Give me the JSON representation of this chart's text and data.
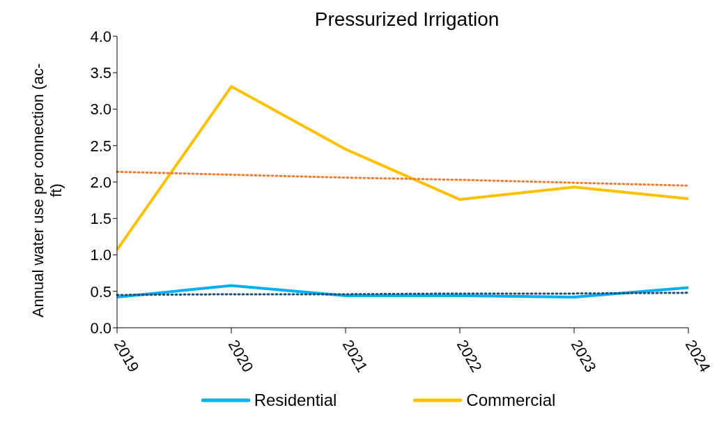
{
  "chart_data": {
    "type": "line",
    "title": "Pressurized Irrigation",
    "ylabel": "Annual water use per connection (ac-ft)",
    "categories": [
      "2019",
      "2020",
      "2021",
      "2022",
      "2023",
      "2024"
    ],
    "series": [
      {
        "name": "Residential",
        "color": "#00b0f0",
        "values": [
          0.42,
          0.58,
          0.44,
          0.44,
          0.42,
          0.55
        ]
      },
      {
        "name": "Commercial",
        "color": "#ffc000",
        "values": [
          1.07,
          3.31,
          2.45,
          1.76,
          1.93,
          1.77
        ]
      },
      {
        "type": "line",
        "color": "#ed7d31",
        "line_style": "dotted",
        "values": [
          2.14,
          2.1,
          2.06,
          2.03,
          1.99,
          1.95
        ]
      },
      {
        "type": "line",
        "color": "#1f4e79",
        "line_style": "dotted",
        "values": [
          0.45,
          0.46,
          0.46,
          0.47,
          0.47,
          0.48
        ]
      }
    ],
    "ylim": [
      0,
      4
    ],
    "yticks": [
      {
        "value": 0,
        "label": "0.0"
      },
      {
        "value": 0.5,
        "label": "0.5"
      },
      {
        "value": 1,
        "label": "1.0"
      },
      {
        "value": 1.5,
        "label": "1.5"
      },
      {
        "value": 2,
        "label": "2.0"
      },
      {
        "value": 2.5,
        "label": "2.5"
      },
      {
        "value": 3,
        "label": "3.0"
      },
      {
        "value": 3.5,
        "label": "3.5"
      },
      {
        "value": 4,
        "label": "4.0"
      }
    ],
    "grid": false,
    "legend": "bottom",
    "marker": "none",
    "line_style": "solid"
  }
}
